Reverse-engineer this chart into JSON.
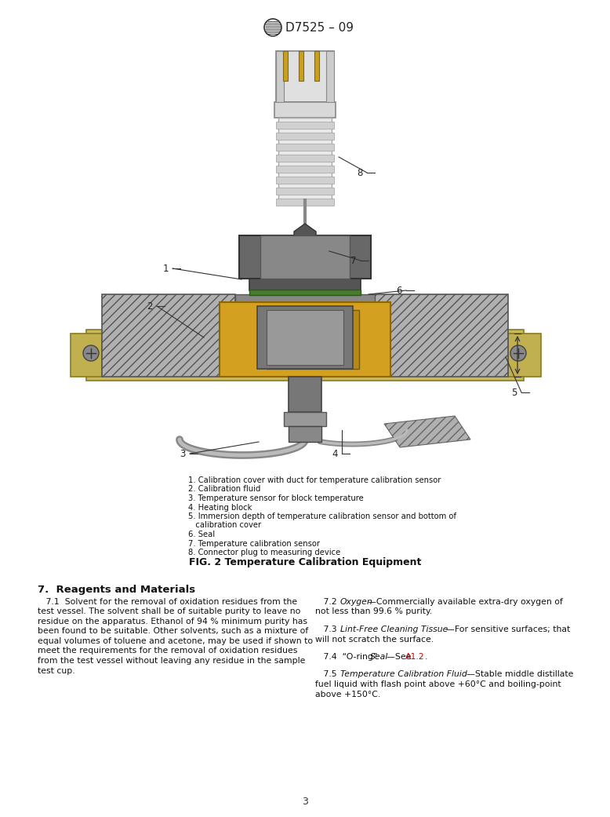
{
  "header_logo_text": "D7525 – 09",
  "fig_caption": "FIG. 2 Temperature Calibration Equipment",
  "legend_items": [
    "1. Calibration cover with duct for temperature calibration sensor",
    "2. Calibration fluid",
    "3. Temperature sensor for block temperature",
    "4. Heating block",
    "5. Immersion depth of temperature calibration sensor and bottom of",
    "   calibration cover",
    "6. Seal",
    "7. Temperature calibration sensor",
    "8. Connector plug to measuring device"
  ],
  "section_title": "7.  Reagents and Materials",
  "col1_lines": [
    "   7.1  Solvent for the removal of oxidation residues from the",
    "test vessel. The solvent shall be of suitable purity to leave no",
    "residue on the apparatus. Ethanol of 94 % minimum purity has",
    "been found to be suitable. Other solvents, such as a mixture of",
    "equal volumes of toluene and acetone, may be used if shown to",
    "meet the requirements for the removal of oxidation residues",
    "from the test vessel without leaving any residue in the sample",
    "test cup."
  ],
  "page_number": "3",
  "background_color": "#ffffff",
  "text_color": "#111111",
  "link_color": "#cc0000"
}
